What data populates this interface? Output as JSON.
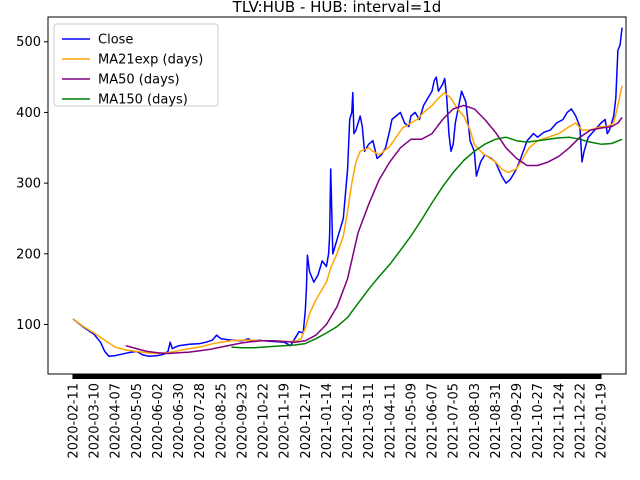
{
  "chart_data": {
    "type": "line",
    "title": "TLV:HUB - HUB: interval=1d",
    "xlabel": "",
    "ylabel": "",
    "x_tick_labels": [
      "2020-02-11",
      "2020-03-10",
      "2020-04-07",
      "2020-05-05",
      "2020-06-02",
      "2020-06-30",
      "2020-07-28",
      "2020-08-25",
      "2020-09-23",
      "2020-10-22",
      "2020-11-19",
      "2020-12-17",
      "2021-01-14",
      "2021-02-11",
      "2021-03-11",
      "2021-04-11",
      "2021-05-09",
      "2021-06-07",
      "2021-07-05",
      "2021-08-03",
      "2021-08-31",
      "2021-09-29",
      "2021-10-27",
      "2021-11-24",
      "2021-12-22",
      "2022-01-19"
    ],
    "y_ticks": [
      100,
      200,
      300,
      400,
      500
    ],
    "ylim": [
      30,
      535
    ],
    "grid": false,
    "legend": "upper-left",
    "series": [
      {
        "name": "Close",
        "color": "#0000ff",
        "points": [
          [
            0,
            108
          ],
          [
            0.5,
            96
          ],
          [
            1,
            86
          ],
          [
            1.3,
            75
          ],
          [
            1.5,
            62
          ],
          [
            1.7,
            55
          ],
          [
            2,
            56
          ],
          [
            2.3,
            58
          ],
          [
            2.6,
            60
          ],
          [
            3,
            62
          ],
          [
            3.3,
            57
          ],
          [
            3.6,
            55
          ],
          [
            4,
            56
          ],
          [
            4.3,
            58
          ],
          [
            4.5,
            62
          ],
          [
            4.6,
            75
          ],
          [
            4.7,
            66
          ],
          [
            5,
            70
          ],
          [
            5.5,
            72
          ],
          [
            6,
            73
          ],
          [
            6.3,
            75
          ],
          [
            6.6,
            78
          ],
          [
            6.8,
            85
          ],
          [
            7,
            80
          ],
          [
            7.5,
            78
          ],
          [
            8,
            77
          ],
          [
            8.3,
            80
          ],
          [
            8.5,
            76
          ],
          [
            8.8,
            78
          ],
          [
            9,
            77
          ],
          [
            9.5,
            76
          ],
          [
            10,
            75
          ],
          [
            10.3,
            70
          ],
          [
            10.5,
            80
          ],
          [
            10.7,
            90
          ],
          [
            10.9,
            88
          ],
          [
            11,
            120
          ],
          [
            11.05,
            150
          ],
          [
            11.1,
            198
          ],
          [
            11.2,
            175
          ],
          [
            11.4,
            160
          ],
          [
            11.6,
            170
          ],
          [
            11.8,
            190
          ],
          [
            12,
            182
          ],
          [
            12.1,
            200
          ],
          [
            12.15,
            225
          ],
          [
            12.2,
            320
          ],
          [
            12.3,
            200
          ],
          [
            12.5,
            220
          ],
          [
            12.8,
            250
          ],
          [
            13,
            320
          ],
          [
            13.1,
            390
          ],
          [
            13.2,
            400
          ],
          [
            13.25,
            428
          ],
          [
            13.3,
            370
          ],
          [
            13.4,
            375
          ],
          [
            13.5,
            385
          ],
          [
            13.6,
            395
          ],
          [
            13.7,
            380
          ],
          [
            13.8,
            345
          ],
          [
            14,
            355
          ],
          [
            14.2,
            360
          ],
          [
            14.4,
            335
          ],
          [
            14.6,
            340
          ],
          [
            14.8,
            350
          ],
          [
            15,
            375
          ],
          [
            15.1,
            390
          ],
          [
            15.3,
            395
          ],
          [
            15.5,
            400
          ],
          [
            15.7,
            385
          ],
          [
            15.9,
            380
          ],
          [
            16,
            395
          ],
          [
            16.2,
            400
          ],
          [
            16.4,
            390
          ],
          [
            16.6,
            410
          ],
          [
            16.8,
            420
          ],
          [
            17,
            430
          ],
          [
            17.1,
            445
          ],
          [
            17.2,
            450
          ],
          [
            17.3,
            430
          ],
          [
            17.5,
            440
          ],
          [
            17.6,
            448
          ],
          [
            17.7,
            420
          ],
          [
            17.8,
            370
          ],
          [
            17.9,
            345
          ],
          [
            18,
            355
          ],
          [
            18.1,
            385
          ],
          [
            18.2,
            400
          ],
          [
            18.4,
            430
          ],
          [
            18.6,
            415
          ],
          [
            18.8,
            360
          ],
          [
            19,
            345
          ],
          [
            19.1,
            310
          ],
          [
            19.3,
            330
          ],
          [
            19.5,
            340
          ],
          [
            19.8,
            335
          ],
          [
            20,
            330
          ],
          [
            20.3,
            310
          ],
          [
            20.5,
            300
          ],
          [
            20.7,
            305
          ],
          [
            21,
            320
          ],
          [
            21.2,
            335
          ],
          [
            21.5,
            360
          ],
          [
            21.8,
            370
          ],
          [
            22,
            365
          ],
          [
            22.3,
            372
          ],
          [
            22.6,
            375
          ],
          [
            22.9,
            385
          ],
          [
            23.2,
            390
          ],
          [
            23.4,
            400
          ],
          [
            23.6,
            405
          ],
          [
            23.8,
            395
          ],
          [
            24,
            380
          ],
          [
            24.1,
            330
          ],
          [
            24.2,
            345
          ],
          [
            24.4,
            365
          ],
          [
            24.7,
            375
          ],
          [
            25,
            385
          ],
          [
            25.2,
            390
          ],
          [
            25.3,
            370
          ],
          [
            25.4,
            375
          ],
          [
            25.5,
            385
          ],
          [
            25.6,
            395
          ],
          [
            25.7,
            420
          ],
          [
            25.8,
            488
          ],
          [
            25.9,
            495
          ],
          [
            26,
            520
          ]
        ]
      },
      {
        "name": "MA21exp (days)",
        "color": "#ffa500",
        "points": [
          [
            0,
            108
          ],
          [
            0.5,
            97
          ],
          [
            1,
            88
          ],
          [
            1.5,
            78
          ],
          [
            2,
            68
          ],
          [
            2.5,
            64
          ],
          [
            3,
            62
          ],
          [
            3.5,
            60
          ],
          [
            4,
            59
          ],
          [
            4.5,
            60
          ],
          [
            5,
            63
          ],
          [
            5.5,
            66
          ],
          [
            6,
            68
          ],
          [
            6.5,
            72
          ],
          [
            7,
            75
          ],
          [
            7.5,
            77
          ],
          [
            8,
            78
          ],
          [
            8.5,
            78
          ],
          [
            9,
            77
          ],
          [
            9.5,
            77
          ],
          [
            10,
            76
          ],
          [
            10.5,
            76
          ],
          [
            10.8,
            80
          ],
          [
            11,
            95
          ],
          [
            11.2,
            115
          ],
          [
            11.5,
            135
          ],
          [
            11.8,
            150
          ],
          [
            12,
            160
          ],
          [
            12.2,
            180
          ],
          [
            12.5,
            200
          ],
          [
            12.8,
            225
          ],
          [
            13,
            260
          ],
          [
            13.2,
            300
          ],
          [
            13.4,
            330
          ],
          [
            13.6,
            345
          ],
          [
            14,
            350
          ],
          [
            14.2,
            345
          ],
          [
            14.5,
            340
          ],
          [
            15,
            352
          ],
          [
            15.3,
            365
          ],
          [
            15.6,
            378
          ],
          [
            16,
            385
          ],
          [
            16.3,
            390
          ],
          [
            16.6,
            400
          ],
          [
            17,
            410
          ],
          [
            17.3,
            420
          ],
          [
            17.6,
            428
          ],
          [
            17.9,
            420
          ],
          [
            18.2,
            405
          ],
          [
            18.5,
            395
          ],
          [
            18.8,
            375
          ],
          [
            19,
            355
          ],
          [
            19.3,
            345
          ],
          [
            19.6,
            338
          ],
          [
            20,
            330
          ],
          [
            20.3,
            320
          ],
          [
            20.6,
            315
          ],
          [
            21,
            320
          ],
          [
            21.3,
            335
          ],
          [
            21.6,
            350
          ],
          [
            22,
            360
          ],
          [
            22.5,
            365
          ],
          [
            23,
            370
          ],
          [
            23.5,
            380
          ],
          [
            23.8,
            385
          ],
          [
            24.1,
            375
          ],
          [
            24.5,
            375
          ],
          [
            25,
            380
          ],
          [
            25.3,
            380
          ],
          [
            25.6,
            385
          ],
          [
            25.8,
            410
          ],
          [
            26,
            438
          ]
        ]
      },
      {
        "name": "MA50 (days)",
        "color": "#800080",
        "points": [
          [
            2.5,
            70
          ],
          [
            3,
            66
          ],
          [
            3.5,
            62
          ],
          [
            4,
            60
          ],
          [
            4.5,
            59
          ],
          [
            5,
            60
          ],
          [
            5.5,
            61
          ],
          [
            6,
            63
          ],
          [
            6.5,
            65
          ],
          [
            7,
            68
          ],
          [
            7.5,
            71
          ],
          [
            8,
            74
          ],
          [
            8.5,
            76
          ],
          [
            9,
            77
          ],
          [
            9.5,
            77
          ],
          [
            10,
            76
          ],
          [
            10.5,
            75
          ],
          [
            11,
            77
          ],
          [
            11.5,
            85
          ],
          [
            12,
            100
          ],
          [
            12.5,
            125
          ],
          [
            13,
            165
          ],
          [
            13.5,
            230
          ],
          [
            14,
            270
          ],
          [
            14.5,
            305
          ],
          [
            15,
            330
          ],
          [
            15.5,
            350
          ],
          [
            16,
            362
          ],
          [
            16.5,
            362
          ],
          [
            17,
            370
          ],
          [
            17.5,
            390
          ],
          [
            18,
            405
          ],
          [
            18.5,
            410
          ],
          [
            19,
            405
          ],
          [
            19.5,
            390
          ],
          [
            20,
            372
          ],
          [
            20.5,
            350
          ],
          [
            21,
            335
          ],
          [
            21.5,
            325
          ],
          [
            22,
            325
          ],
          [
            22.5,
            330
          ],
          [
            23,
            338
          ],
          [
            23.5,
            350
          ],
          [
            24,
            365
          ],
          [
            24.5,
            375
          ],
          [
            25,
            378
          ],
          [
            25.5,
            380
          ],
          [
            25.8,
            385
          ],
          [
            26,
            393
          ]
        ]
      },
      {
        "name": "MA150 (days)",
        "color": "#008000",
        "points": [
          [
            7.5,
            68
          ],
          [
            8,
            67
          ],
          [
            8.5,
            67
          ],
          [
            9,
            68
          ],
          [
            9.5,
            69
          ],
          [
            10,
            70
          ],
          [
            10.5,
            71
          ],
          [
            11,
            73
          ],
          [
            11.5,
            80
          ],
          [
            12,
            88
          ],
          [
            12.5,
            97
          ],
          [
            13,
            110
          ],
          [
            13.5,
            130
          ],
          [
            14,
            150
          ],
          [
            14.5,
            168
          ],
          [
            15,
            185
          ],
          [
            15.5,
            205
          ],
          [
            16,
            225
          ],
          [
            16.5,
            248
          ],
          [
            17,
            272
          ],
          [
            17.5,
            295
          ],
          [
            18,
            315
          ],
          [
            18.5,
            332
          ],
          [
            19,
            345
          ],
          [
            19.5,
            355
          ],
          [
            20,
            362
          ],
          [
            20.5,
            365
          ],
          [
            21,
            360
          ],
          [
            21.5,
            358
          ],
          [
            22,
            360
          ],
          [
            22.5,
            362
          ],
          [
            23,
            364
          ],
          [
            23.5,
            365
          ],
          [
            24,
            362
          ],
          [
            24.5,
            358
          ],
          [
            25,
            355
          ],
          [
            25.5,
            356
          ],
          [
            26,
            362
          ]
        ]
      }
    ]
  }
}
